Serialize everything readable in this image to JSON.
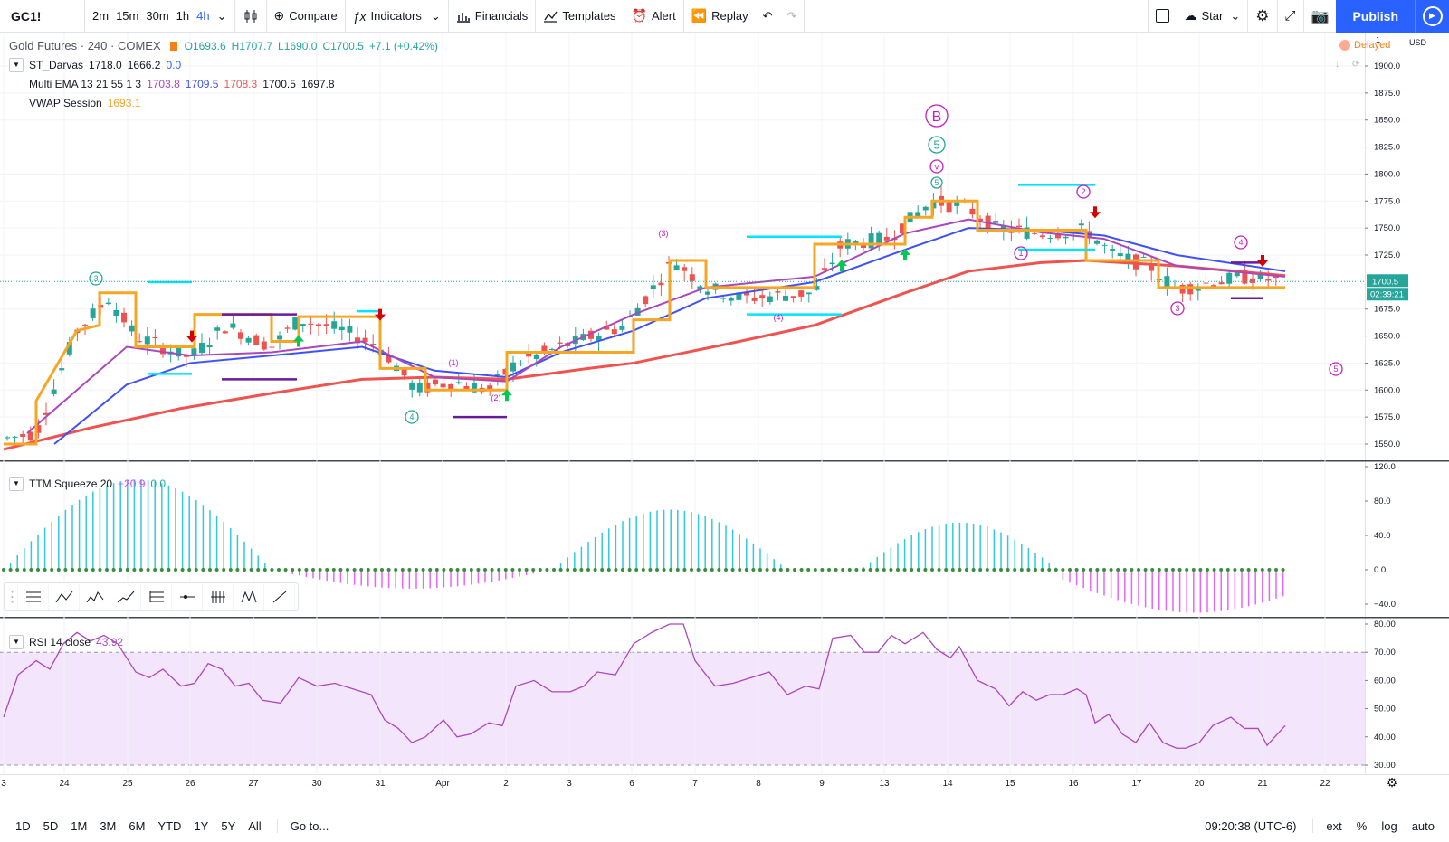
{
  "toolbar": {
    "symbol": "GC1!",
    "intervals": [
      "2m",
      "15m",
      "30m",
      "1h",
      "4h"
    ],
    "active_interval": "4h",
    "compare": "Compare",
    "indicators": "Indicators",
    "financials": "Financials",
    "templates": "Templates",
    "alert": "Alert",
    "replay": "Replay",
    "layout_name": "Star",
    "publish": "Publish"
  },
  "legend": {
    "title": "Gold Futures · 240 · COMEX",
    "open": "O1693.6",
    "high": "H1707.7",
    "low": "L1690.0",
    "close": "C1700.5",
    "change": "+7.1 (+0.42%)",
    "darvas": {
      "name": "ST_Darvas",
      "v1": "1718.0",
      "v2": "1666.2",
      "v3": "0.0"
    },
    "ema": {
      "name": "Multi EMA 13 21 55 1 3",
      "v1": "1703.8",
      "v2": "1709.5",
      "v3": "1708.3",
      "v4": "1700.5",
      "v5": "1697.8"
    },
    "vwap": {
      "name": "VWAP Session",
      "v1": "1693.1"
    },
    "ttm": {
      "name": "TTM Squeeze 20",
      "v1": "−20.9",
      "v2": "0.0"
    },
    "rsi": {
      "name": "RSI 14 close",
      "v1": "43.92"
    }
  },
  "status": {
    "delayed": "Delayed",
    "currency": "USD",
    "price_tag": "1700.5",
    "countdown": "02:39:21"
  },
  "price_axis": [
    "1900.0",
    "1875.0",
    "1850.0",
    "1825.0",
    "1800.0",
    "1775.0",
    "1750.0",
    "1725.0",
    "1675.0",
    "1650.0",
    "1625.0",
    "1600.0",
    "1575.0",
    "1550.0"
  ],
  "ttm_axis": [
    "120.0",
    "80.0",
    "40.0",
    "0.0",
    "−40.0"
  ],
  "rsi_axis": [
    "80.00",
    "70.00",
    "60.00",
    "50.00",
    "40.00",
    "30.00"
  ],
  "date_axis": [
    "3",
    "24",
    "25",
    "26",
    "27",
    "30",
    "31",
    "Apr",
    "2",
    "3",
    "6",
    "7",
    "8",
    "9",
    "13",
    "14",
    "15",
    "16",
    "17",
    "20",
    "21",
    "22"
  ],
  "wave_labels": [
    "B",
    "5",
    "v",
    "5",
    "3",
    "(3)",
    "2",
    "4",
    "4",
    "(1)",
    "(2)",
    "(4)",
    "1",
    "3",
    "5"
  ],
  "bottom": {
    "ranges": [
      "1D",
      "5D",
      "1M",
      "3M",
      "6M",
      "YTD",
      "1Y",
      "5Y",
      "All"
    ],
    "goto": "Go to...",
    "clock": "09:20:38 (UTC-6)",
    "opts": [
      "ext",
      "%",
      "log",
      "auto"
    ]
  },
  "colors": {
    "accent": "#2962ff",
    "up": "#26a69a",
    "down": "#ef5350",
    "darvas": "#f5a623",
    "ema_fast": "#ab47bc",
    "ema_mid": "#3f51f5",
    "ema_slow": "#ef5350"
  }
}
